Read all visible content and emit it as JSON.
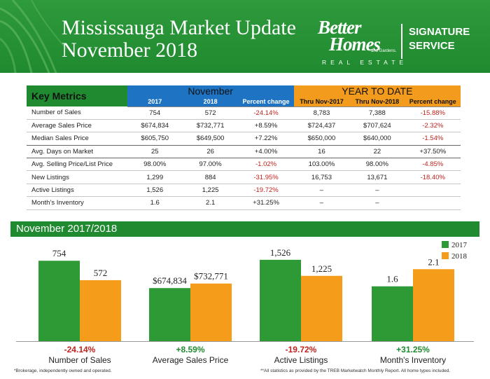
{
  "header": {
    "title_line1": "Mississauga Market Update",
    "title_line2": "November 2018",
    "brand_line1": "Better",
    "brand_line2": "Homes",
    "brand_sub": "and Gardens.",
    "brand_real_estate": "REAL ESTATE",
    "signature_line1": "SIGNATURE",
    "signature_line2": "SERVICE"
  },
  "table": {
    "key_metrics_label": "Key Metrics",
    "group_november": "November",
    "group_ytd": "YEAR TO DATE",
    "subheaders": [
      "2017",
      "2018",
      "Percent change",
      "Thru Nov-2017",
      "Thru Nov-2018",
      "Percent change"
    ],
    "rows": [
      {
        "metric": "Number of Sales",
        "cells": [
          "754",
          "572",
          "-24.14%",
          "8,783",
          "7,388",
          "-15.88%"
        ]
      },
      {
        "metric": "Average Sales Price",
        "cells": [
          "$674,834",
          "$732,771",
          "+8.59%",
          "$724,437",
          "$707,624",
          "-2.32%"
        ]
      },
      {
        "metric": "Median Sales Price",
        "cells": [
          "$605,750",
          "$649,500",
          "+7.22%",
          "$650,000",
          "$640,000",
          "-1.54%"
        ]
      },
      {
        "metric": "Avg. Days on Market",
        "cells": [
          "25",
          "26",
          "+4.00%",
          "16",
          "22",
          "+37.50%"
        ]
      },
      {
        "metric": "Avg. Selling Price/List Price",
        "cells": [
          "98.00%",
          "97.00%",
          "-1.02%",
          "103.00%",
          "98.00%",
          "-4.85%"
        ]
      },
      {
        "metric": "New Listings",
        "cells": [
          "1,299",
          "884",
          "-31.95%",
          "16,753",
          "13,671",
          "-18.40%"
        ]
      },
      {
        "metric": "Active Listings",
        "cells": [
          "1,526",
          "1,225",
          "-19.72%",
          "–",
          "–",
          ""
        ]
      },
      {
        "metric": "Month’s Inventory",
        "cells": [
          "1.6",
          "2.1",
          "+31.25%",
          "–",
          "–",
          ""
        ]
      }
    ]
  },
  "chart_section_title": "November 2017/2018",
  "chart_data": {
    "type": "bar",
    "legend_position": "top-right",
    "series": [
      {
        "name": "2017",
        "color": "#2e9a35"
      },
      {
        "name": "2018",
        "color": "#f59c1a"
      }
    ],
    "panels": [
      {
        "category": "Number of Sales",
        "values": [
          754,
          572
        ],
        "labels": [
          "754",
          "572"
        ],
        "change": "-24.14%",
        "ylim": [
          0,
          900
        ]
      },
      {
        "category": "Average Sales Price",
        "values": [
          674834,
          732771
        ],
        "labels": [
          "$674,834",
          "$732,771"
        ],
        "change": "+8.59%",
        "ylim": [
          0,
          1220000
        ]
      },
      {
        "category": "Active Listings",
        "values": [
          1526,
          1225
        ],
        "labels": [
          "1,526",
          "1,225"
        ],
        "change": "-19.72%",
        "ylim": [
          0,
          1800
        ]
      },
      {
        "category": "Month's Inventory",
        "values": [
          1.6,
          2.1
        ],
        "labels": [
          "1.6",
          "2.1"
        ],
        "change": "+31.25%",
        "ylim": [
          0,
          2.8
        ]
      }
    ]
  },
  "footnotes": {
    "left": "*Brokerage, independently owned and operated.",
    "right": "**All statistics as provided by the TREB Marketwatch Monthly Report. All home types included."
  },
  "colors": {
    "green": "#1f8a2f",
    "blue": "#1f73c3",
    "orange": "#f29b1d",
    "negative": "#c0231e",
    "positive": "#1f8a2f"
  }
}
